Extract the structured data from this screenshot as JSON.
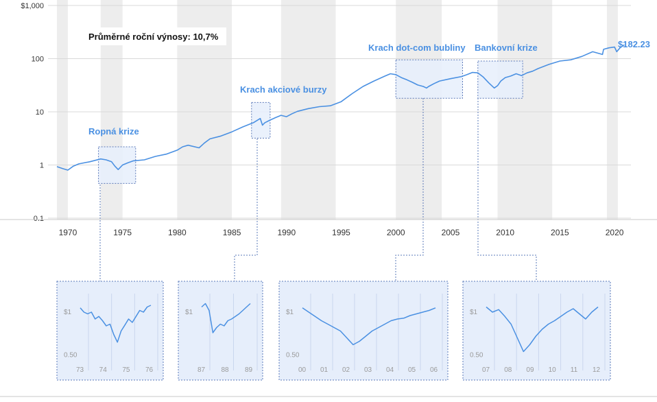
{
  "colors": {
    "line": "#4a90e2",
    "label": "#4a90e2",
    "band": "#ededed",
    "crisis_fill": "#e6eefb",
    "crisis_stroke": "#5a78b8",
    "grid": "#d9d9d9",
    "tick_label": "#333333",
    "inset_label": "#9a9a9a"
  },
  "chart_data": {
    "type": "line",
    "title": "",
    "xlabel": "",
    "ylabel": "",
    "scale": "log",
    "xlim": [
      1969,
      2021.5
    ],
    "ylim": [
      0.1,
      1000
    ],
    "y_ticks": [
      {
        "value": 1000,
        "label": "$1,000"
      },
      {
        "value": 100,
        "label": "100"
      },
      {
        "value": 10,
        "label": "10"
      },
      {
        "value": 1,
        "label": "1"
      },
      {
        "value": 0.1,
        "label": "0.1"
      }
    ],
    "x_ticks": [
      1970,
      1975,
      1980,
      1985,
      1990,
      1995,
      2000,
      2005,
      2010,
      2015,
      2020
    ],
    "grid": "horizontal",
    "recession_bands": [
      [
        1969,
        1970
      ],
      [
        1973,
        1975
      ],
      [
        1980,
        1985
      ],
      [
        1989.5,
        1994.5
      ],
      [
        2000,
        2004.2
      ],
      [
        2009.3,
        2014.3
      ],
      [
        2019.3,
        2020.3
      ]
    ],
    "annotation": "Průměrné roční výnosy: 10,7%",
    "end_label": "$182.23",
    "series": [
      {
        "x": [
          1969.0,
          1969.5,
          1970.0,
          1970.5,
          1971.0,
          1972.0,
          1973.0,
          1973.5,
          1974.0,
          1974.3,
          1974.6,
          1975.0,
          1975.5,
          1976.0,
          1977.0,
          1978.0,
          1979.0,
          1980.0,
          1980.5,
          1981.0,
          1982.0,
          1982.5,
          1983.0,
          1984.0,
          1985.0,
          1986.0,
          1987.0,
          1987.6,
          1987.8,
          1988.0,
          1988.5,
          1989.0,
          1989.5,
          1990.0,
          1990.5,
          1991.0,
          1992.0,
          1993.0,
          1994.0,
          1995.0,
          1996.0,
          1997.0,
          1998.0,
          1999.0,
          1999.5,
          2000.0,
          2000.5,
          2001.0,
          2001.5,
          2002.0,
          2002.5,
          2002.8,
          2003.0,
          2003.5,
          2004.0,
          2005.0,
          2006.0,
          2006.5,
          2007.0,
          2007.5,
          2008.0,
          2008.5,
          2009.0,
          2009.3,
          2009.6,
          2010.0,
          2010.5,
          2011.0,
          2011.5,
          2012.0,
          2012.5,
          2013.0,
          2014.0,
          2015.0,
          2016.0,
          2017.0,
          2018.0,
          2018.9,
          2019.0,
          2019.5,
          2020.0,
          2020.2,
          2020.5,
          2020.9
        ],
        "y": [
          0.93,
          0.86,
          0.8,
          0.95,
          1.05,
          1.15,
          1.3,
          1.25,
          1.15,
          0.95,
          0.82,
          1.0,
          1.1,
          1.2,
          1.25,
          1.45,
          1.6,
          1.9,
          2.2,
          2.35,
          2.1,
          2.6,
          3.1,
          3.5,
          4.2,
          5.2,
          6.3,
          7.5,
          5.6,
          6.2,
          7.0,
          7.8,
          8.6,
          8.1,
          9.2,
          10.2,
          11.5,
          12.5,
          13.0,
          15.5,
          22.0,
          30.0,
          38.0,
          47.0,
          52.0,
          50.0,
          44.0,
          40.0,
          36.0,
          32.0,
          30.0,
          28.0,
          30.0,
          34.0,
          38.0,
          42.0,
          46.0,
          50.0,
          55.0,
          54.0,
          45.0,
          35.0,
          28.0,
          31.0,
          38.0,
          44.0,
          47.0,
          52.0,
          48.0,
          54.0,
          58.0,
          65.0,
          78.0,
          90.0,
          95.0,
          110.0,
          135.0,
          120.0,
          150.0,
          160.0,
          165.0,
          135.0,
          160.0,
          182.23
        ]
      }
    ],
    "crises": [
      {
        "name": "Ropná krize",
        "x0": 1972.8,
        "x1": 1976.2,
        "y0": 0.45,
        "y1": 2.2
      },
      {
        "name": "Krach akciové burzy",
        "x0": 1986.8,
        "x1": 1988.5,
        "y0": 3.2,
        "y1": 15
      },
      {
        "name": "Krach dot-com bubliny",
        "x0": 2000,
        "x1": 2006.1,
        "y0": 18,
        "y1": 95
      },
      {
        "name": "Bankovní krize",
        "x0": 2007.5,
        "x1": 2011.6,
        "y0": 18,
        "y1": 90
      }
    ],
    "insets": [
      {
        "y_tick_labels": [
          "$1",
          "0.50"
        ],
        "x_labels": [
          "73",
          "74",
          "75",
          "76"
        ],
        "y": [
          1.05,
          1.0,
          0.98,
          1.0,
          0.92,
          0.95,
          0.9,
          0.84,
          0.86,
          0.74,
          0.65,
          0.78,
          0.85,
          0.92,
          0.88,
          0.95,
          1.02,
          1.0,
          1.06,
          1.08
        ]
      },
      {
        "y_tick_labels": [
          "$1"
        ],
        "x_labels": [
          "87",
          "88",
          "89"
        ],
        "y": [
          1.06,
          1.1,
          1.02,
          0.76,
          0.82,
          0.86,
          0.84,
          0.9,
          0.92,
          0.95,
          0.98,
          1.02,
          1.06,
          1.1
        ]
      },
      {
        "y_tick_labels": [
          "$1",
          "0.50"
        ],
        "x_labels": [
          "00",
          "01",
          "02",
          "03",
          "04",
          "05",
          "06"
        ],
        "y": [
          1.05,
          1.0,
          0.95,
          0.9,
          0.86,
          0.82,
          0.78,
          0.7,
          0.62,
          0.66,
          0.72,
          0.78,
          0.82,
          0.86,
          0.9,
          0.92,
          0.93,
          0.96,
          0.98,
          1.0,
          1.02,
          1.05
        ]
      },
      {
        "y_tick_labels": [
          "$1",
          "0.50"
        ],
        "x_labels": [
          "07",
          "08",
          "09",
          "10",
          "11",
          "12"
        ],
        "y": [
          1.06,
          1.0,
          1.03,
          0.95,
          0.86,
          0.7,
          0.54,
          0.62,
          0.72,
          0.8,
          0.86,
          0.9,
          0.95,
          1.0,
          1.04,
          0.98,
          0.92,
          1.0,
          1.06
        ]
      }
    ]
  }
}
